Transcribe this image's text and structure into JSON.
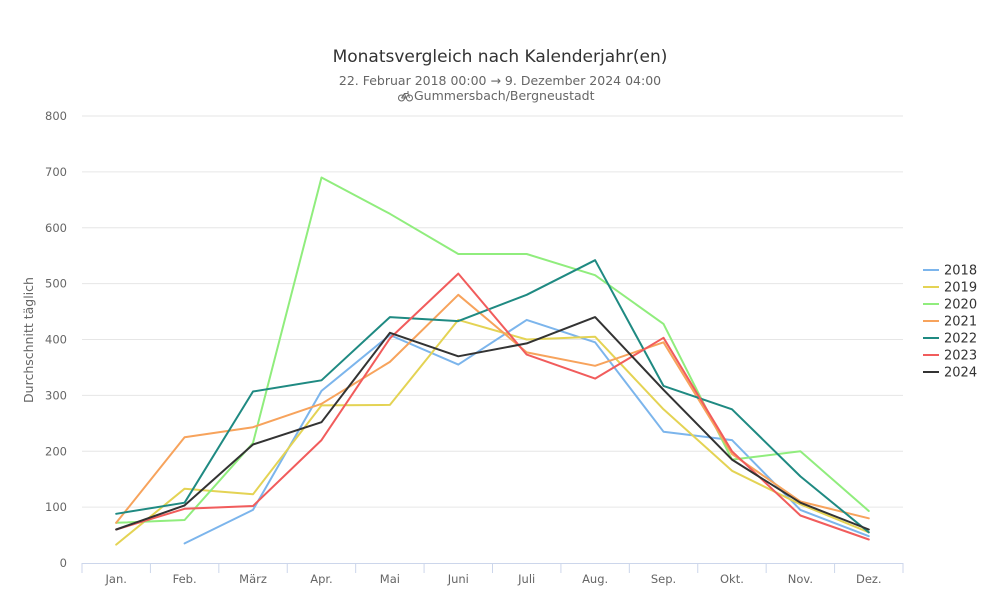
{
  "chart_data": {
    "type": "line",
    "title": "Monatsvergleich nach Kalenderjahr(en)",
    "subtitle": "22. Februar 2018 00:00 → 9. Dezember 2024 04:00",
    "location": "Gummersbach/Bergneustadt",
    "location_icon": "bicycle-icon",
    "xlabel": "",
    "ylabel": "Durchschnitt täglich",
    "categories": [
      "Jan.",
      "Feb.",
      "März",
      "Apr.",
      "Mai",
      "Juni",
      "Juli",
      "Aug.",
      "Sep.",
      "Okt.",
      "Nov.",
      "Dez."
    ],
    "ylim": [
      0,
      800
    ],
    "yticks": [
      0,
      100,
      200,
      300,
      400,
      500,
      600,
      700,
      800
    ],
    "grid": true,
    "legend_position": "right",
    "series": [
      {
        "name": "2018",
        "color": "#7cb5ec",
        "values": [
          null,
          35,
          95,
          308,
          408,
          355,
          435,
          395,
          235,
          220,
          95,
          48
        ]
      },
      {
        "name": "2019",
        "color": "#e4d354",
        "values": [
          33,
          133,
          123,
          282,
          283,
          435,
          400,
          405,
          275,
          165,
          105,
          55
        ]
      },
      {
        "name": "2020",
        "color": "#90ed7d",
        "values": [
          72,
          77,
          215,
          690,
          625,
          553,
          553,
          515,
          428,
          185,
          200,
          93
        ]
      },
      {
        "name": "2021",
        "color": "#f7a35c",
        "values": [
          72,
          225,
          243,
          285,
          360,
          480,
          377,
          353,
          395,
          195,
          110,
          80
        ]
      },
      {
        "name": "2022",
        "color": "#1f8a82",
        "values": [
          88,
          108,
          307,
          327,
          440,
          433,
          480,
          542,
          317,
          275,
          155,
          55
        ]
      },
      {
        "name": "2023",
        "color": "#f15c5c",
        "values": [
          60,
          97,
          102,
          220,
          402,
          518,
          373,
          330,
          403,
          200,
          85,
          42
        ]
      },
      {
        "name": "2024",
        "color": "#333333",
        "values": [
          60,
          103,
          212,
          252,
          412,
          370,
          393,
          440,
          310,
          185,
          108,
          60
        ]
      }
    ]
  }
}
